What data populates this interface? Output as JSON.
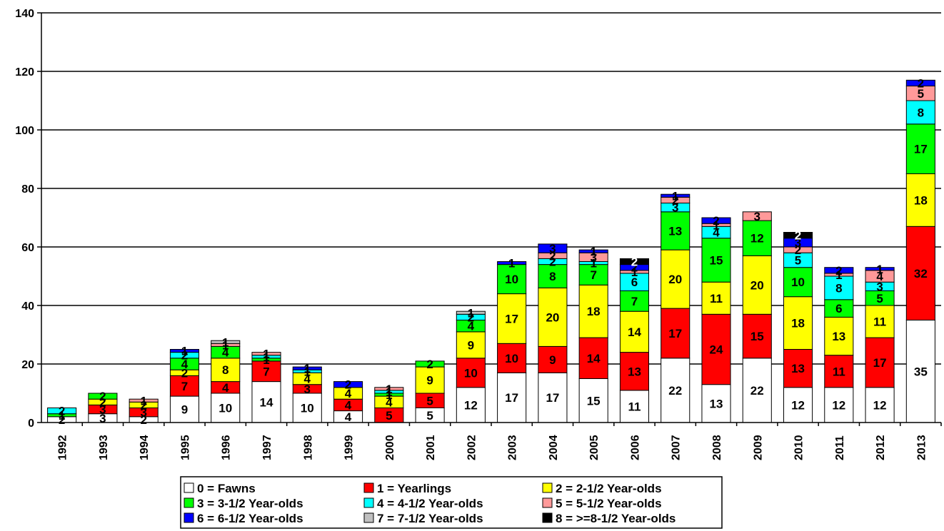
{
  "chart_data": {
    "type": "bar",
    "stacked": true,
    "title": "",
    "xlabel": "",
    "ylabel": "",
    "ylim": [
      0,
      140
    ],
    "yticks": [
      0,
      20,
      40,
      60,
      80,
      100,
      120,
      140
    ],
    "grid": true,
    "legend_position": "bottom",
    "categories": [
      "1992",
      "1993",
      "1994",
      "1995",
      "1996",
      "1997",
      "1998",
      "1999",
      "2000",
      "2001",
      "2002",
      "2003",
      "2004",
      "2005",
      "2006",
      "2007",
      "2008",
      "2009",
      "2010",
      "2011",
      "2012",
      "2013"
    ],
    "series": [
      {
        "name": "0 = Fawns",
        "color": "#FFFFFF",
        "label_color": "#000000",
        "values": [
          2,
          3,
          2,
          9,
          10,
          14,
          10,
          4,
          0,
          5,
          12,
          17,
          17,
          15,
          11,
          22,
          13,
          22,
          12,
          12,
          12,
          35
        ]
      },
      {
        "name": "1 = Yearlings",
        "color": "#FF0000",
        "label_color": "#000000",
        "values": [
          0,
          3,
          3,
          7,
          4,
          7,
          3,
          4,
          5,
          5,
          10,
          10,
          9,
          14,
          13,
          17,
          24,
          15,
          13,
          11,
          17,
          32
        ]
      },
      {
        "name": "2 = 2-1/2 Year-olds",
        "color": "#FFFF00",
        "label_color": "#000000",
        "values": [
          0,
          2,
          2,
          2,
          8,
          0,
          4,
          4,
          4,
          9,
          9,
          17,
          20,
          18,
          14,
          20,
          11,
          20,
          18,
          13,
          11,
          18
        ]
      },
      {
        "name": "3 = 3-1/2 Year-olds",
        "color": "#00FF00",
        "label_color": "#000000",
        "values": [
          1,
          2,
          0,
          4,
          4,
          1,
          0,
          0,
          1,
          2,
          4,
          10,
          8,
          7,
          7,
          13,
          15,
          12,
          10,
          6,
          5,
          17
        ]
      },
      {
        "name": "4 = 4-1/2 Year-olds",
        "color": "#00FFFF",
        "label_color": "#000000",
        "values": [
          2,
          0,
          0,
          2,
          0,
          1,
          1,
          0,
          1,
          0,
          2,
          0,
          2,
          1,
          6,
          3,
          4,
          0,
          5,
          8,
          3,
          8
        ]
      },
      {
        "name": "5 = 5-1/2 Year-olds",
        "color": "#FF9999",
        "label_color": "#000000",
        "values": [
          0,
          0,
          1,
          0,
          1,
          1,
          0,
          0,
          1,
          0,
          0,
          0,
          2,
          3,
          1,
          2,
          1,
          3,
          2,
          1,
          4,
          5
        ]
      },
      {
        "name": "6 = 6-1/2 Year-olds",
        "color": "#0000FF",
        "label_color": "#000000",
        "values": [
          0,
          0,
          0,
          1,
          0,
          0,
          1,
          2,
          0,
          0,
          0,
          1,
          3,
          1,
          2,
          1,
          2,
          0,
          3,
          2,
          1,
          2
        ]
      },
      {
        "name": "7 = 7-1/2 Year-olds",
        "color": "#C0C0C0",
        "label_color": "#000000",
        "values": [
          0,
          0,
          0,
          0,
          1,
          0,
          0,
          0,
          0,
          0,
          1,
          0,
          0,
          0,
          0,
          0,
          0,
          0,
          0,
          0,
          0,
          0
        ]
      },
      {
        "name": "8 = >=8-1/2 Year-olds",
        "color": "#000000",
        "label_color": "#FFFFFF",
        "values": [
          0,
          0,
          0,
          0,
          0,
          0,
          0,
          0,
          0,
          0,
          0,
          0,
          0,
          0,
          2,
          0,
          0,
          0,
          2,
          0,
          0,
          0
        ]
      }
    ]
  }
}
